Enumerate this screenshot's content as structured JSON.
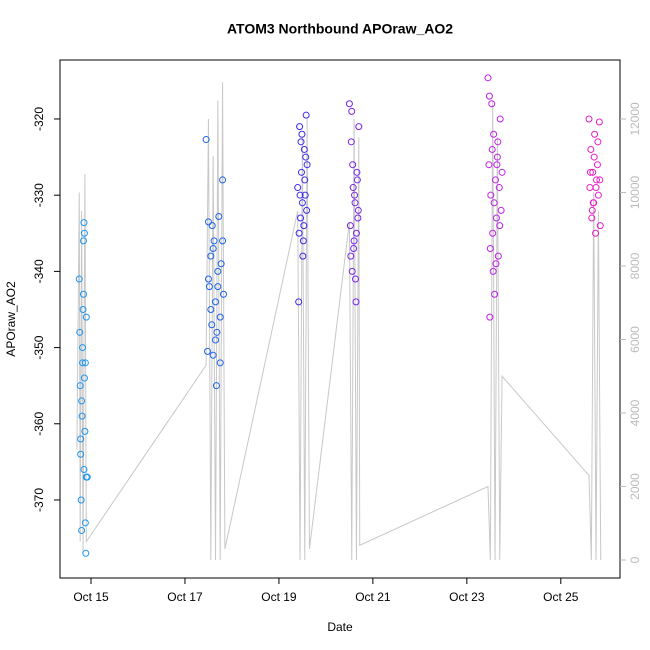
{
  "chart_data": {
    "type": "scatter",
    "title": "ATOM3 Northbound APOraw_AO2",
    "x_label": "Date",
    "y_label": "APOraw_AO2",
    "xlim": [
      14.34,
      26.26
    ],
    "ylim": [
      -380.24,
      -312.26
    ],
    "y2lim": [
      -490,
      13605
    ],
    "xticks": [
      {
        "value": 15,
        "label": "Oct 15"
      },
      {
        "value": 17,
        "label": "Oct 17"
      },
      {
        "value": 19,
        "label": "Oct 19"
      },
      {
        "value": 21,
        "label": "Oct 21"
      },
      {
        "value": 23,
        "label": "Oct 23"
      },
      {
        "value": 25,
        "label": "Oct 25"
      }
    ],
    "yticks": [
      -370,
      -360,
      -350,
      -340,
      -330,
      -320
    ],
    "y2ticks": [
      0,
      2000,
      4000,
      6000,
      8000,
      10000,
      12000
    ],
    "y2_color": "#bbbbbb",
    "series": [
      {
        "color": "#c8c8c8",
        "axis": "y2",
        "x": [
          14.7,
          14.75,
          14.77,
          14.8,
          14.83,
          14.87,
          14.9,
          17.45,
          17.5,
          17.55,
          17.6,
          17.65,
          17.7,
          17.75,
          17.8,
          17.85,
          19.4,
          19.45,
          19.5,
          19.55,
          19.6,
          19.65,
          20.5,
          20.55,
          20.6,
          20.65,
          20.7,
          20.72,
          23.45,
          23.5,
          23.55,
          23.6,
          23.65,
          23.7,
          23.75,
          25.6,
          25.65,
          25.7,
          25.75,
          25.8,
          25.85
        ],
        "values": [
          3000,
          10000,
          500,
          9500,
          200,
          10500,
          500,
          5300,
          12000,
          0,
          11000,
          0,
          12500,
          0,
          13000,
          300,
          9500,
          0,
          11500,
          0,
          12000,
          300,
          9200,
          0,
          12000,
          0,
          11500,
          400,
          2000,
          0,
          12500,
          0,
          11500,
          0,
          5000,
          2300,
          0,
          10000,
          0,
          9500,
          0
        ]
      },
      {
        "color": "#1e96f0",
        "x": [
          14.75,
          14.76,
          14.77,
          14.78,
          14.79,
          14.8,
          14.81,
          14.82,
          14.83,
          14.84,
          14.85,
          14.86,
          14.87,
          14.88,
          14.89,
          14.9,
          14.78,
          14.8,
          14.82,
          14.84,
          14.86,
          14.88,
          14.9,
          14.92,
          14.85
        ],
        "values": [
          -341,
          -348,
          -355,
          -362,
          -370,
          -374,
          -359,
          -352,
          -345,
          -336,
          -366,
          -354,
          -361,
          -373,
          -377,
          -367,
          -364,
          -357,
          -350,
          -343,
          -335,
          -352,
          -346,
          -367,
          -333.6
        ]
      },
      {
        "color": "#1e64e6",
        "x": [
          17.45,
          17.48,
          17.5,
          17.52,
          17.55,
          17.57,
          17.6,
          17.62,
          17.65,
          17.67,
          17.7,
          17.72,
          17.75,
          17.77,
          17.8,
          17.82,
          17.5,
          17.55,
          17.6,
          17.65,
          17.7,
          17.75,
          17.8,
          17.58,
          17.68
        ],
        "values": [
          -322.7,
          -350.5,
          -333.5,
          -342,
          -338,
          -347,
          -351,
          -336,
          -344,
          -355,
          -340,
          -332.8,
          -346,
          -339,
          -328,
          -343,
          -341,
          -345,
          -337,
          -349,
          -342,
          -352,
          -336,
          -334,
          -348
        ]
      },
      {
        "color": "#3c2ae8",
        "x": [
          19.4,
          19.42,
          19.44,
          19.46,
          19.48,
          19.5,
          19.52,
          19.54,
          19.56,
          19.58,
          19.6,
          19.43,
          19.47,
          19.51,
          19.55,
          19.59,
          19.45,
          19.53,
          19.57,
          19.49
        ],
        "values": [
          -329,
          -344,
          -321,
          -333,
          -327,
          -331,
          -336,
          -324,
          -330,
          -319.5,
          -326,
          -335,
          -323,
          -338,
          -328,
          -332,
          -330,
          -334,
          -325,
          -322
        ]
      },
      {
        "color": "#7a24e6",
        "x": [
          20.5,
          20.52,
          20.54,
          20.56,
          20.58,
          20.6,
          20.62,
          20.64,
          20.66,
          20.68,
          20.7,
          20.53,
          20.57,
          20.61,
          20.65,
          20.69,
          20.55,
          20.63,
          20.67,
          20.59
        ],
        "values": [
          -318,
          -334,
          -323,
          -340,
          -329,
          -336,
          -331,
          -344,
          -327,
          -333,
          -321,
          -338,
          -326,
          -330,
          -335,
          -332,
          -319,
          -341,
          -328,
          -337
        ]
      },
      {
        "color": "#c022e8",
        "x": [
          23.45,
          23.47,
          23.49,
          23.51,
          23.53,
          23.55,
          23.57,
          23.59,
          23.61,
          23.63,
          23.65,
          23.67,
          23.69,
          23.71,
          23.73,
          23.75,
          23.5,
          23.54,
          23.58,
          23.62,
          23.66,
          23.7,
          23.48,
          23.56,
          23.64
        ],
        "values": [
          -314.6,
          -326,
          -346,
          -330,
          -318,
          -335,
          -322,
          -343,
          -328,
          -333,
          -325,
          -338,
          -329,
          -320,
          -332,
          -327,
          -337,
          -324,
          -331,
          -339,
          -323,
          -334,
          -317,
          -340,
          -326
        ]
      },
      {
        "color": "#e61ec8",
        "x": [
          25.6,
          25.62,
          25.64,
          25.66,
          25.68,
          25.7,
          25.72,
          25.74,
          25.76,
          25.78,
          25.8,
          25.82,
          25.84,
          25.63,
          25.67,
          25.71,
          25.75,
          25.79,
          25.83,
          25.69
        ],
        "values": [
          -320,
          -329,
          -324,
          -333,
          -327,
          -331,
          -322,
          -335,
          -328,
          -326,
          -330,
          -320.4,
          -334,
          -327,
          -332,
          -325,
          -329,
          -323,
          -328,
          -331
        ]
      }
    ]
  }
}
